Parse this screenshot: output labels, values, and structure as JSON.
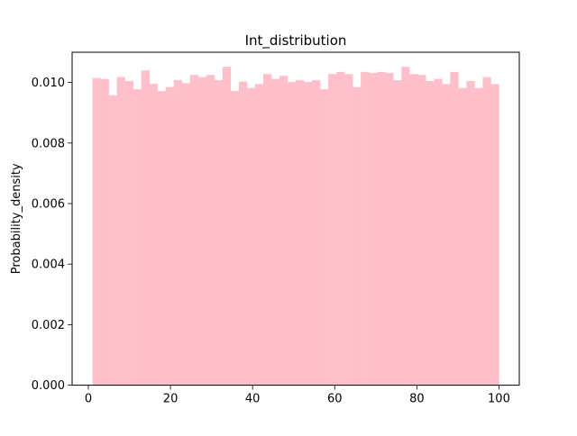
{
  "chart_data": {
    "type": "bar",
    "title": "Int_distribution",
    "xlabel": "",
    "ylabel": "Probability_density",
    "xlim": [
      -3.95,
      104.95
    ],
    "ylim": [
      0,
      0.011
    ],
    "xticks": [
      0,
      20,
      40,
      60,
      80,
      100
    ],
    "xtick_labels": [
      "0",
      "20",
      "40",
      "60",
      "80",
      "100"
    ],
    "yticks": [
      0,
      0.002,
      0.004,
      0.006,
      0.008,
      0.01
    ],
    "ytick_labels": [
      "0.000",
      "0.002",
      "0.004",
      "0.006",
      "0.008",
      "0.010"
    ],
    "grid": false,
    "legend": "none",
    "bar_color": "#ffc0cb",
    "bin_edges": [
      1,
      2.98,
      4.96,
      6.94,
      8.92,
      10.9,
      12.88,
      14.86,
      16.84,
      18.82,
      20.8,
      22.78,
      24.76,
      26.74,
      28.72,
      30.7,
      32.68,
      34.66,
      36.64,
      38.62,
      40.6,
      42.58,
      44.56,
      46.54,
      48.52,
      50.5,
      52.48,
      54.46,
      56.44,
      58.42,
      60.4,
      62.38,
      64.36,
      66.34,
      68.32,
      70.3,
      72.28,
      74.26,
      76.24,
      78.22,
      80.2,
      82.18,
      84.16,
      86.14,
      88.12,
      90.1,
      92.08,
      94.06,
      96.04,
      98.02,
      100
    ],
    "values": [
      0.01015,
      0.01012,
      0.00958,
      0.01018,
      0.01005,
      0.00978,
      0.0104,
      0.00996,
      0.00972,
      0.00985,
      0.01008,
      0.00998,
      0.01025,
      0.01018,
      0.01025,
      0.01008,
      0.01052,
      0.00972,
      0.01003,
      0.00982,
      0.00995,
      0.01028,
      0.01012,
      0.01022,
      0.01002,
      0.01008,
      0.01002,
      0.01008,
      0.00978,
      0.01028,
      0.01035,
      0.01028,
      0.00985,
      0.01035,
      0.01032,
      0.01035,
      0.01032,
      0.01008,
      0.01052,
      0.01028,
      0.01025,
      0.01005,
      0.01012,
      0.00995,
      0.01035,
      0.00982,
      0.01005,
      0.00982,
      0.01018,
      0.00995
    ]
  }
}
